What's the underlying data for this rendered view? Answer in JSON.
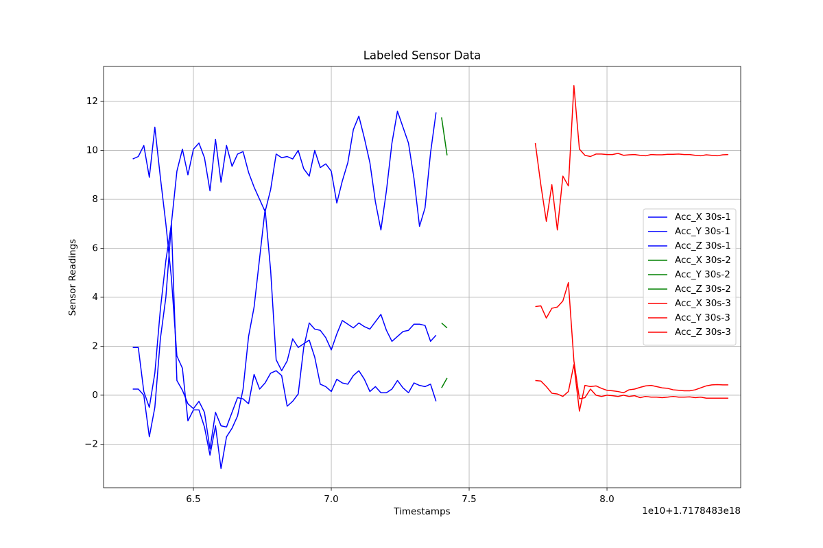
{
  "chart_data": {
    "type": "line",
    "title": "Labeled Sensor Data",
    "x_label": "Timestamps",
    "y_label": "Sensor Readings",
    "x_offset_label": "1e10+1.7178483e18",
    "xlim": [
      6.174,
      8.485
    ],
    "ylim": [
      -3.78,
      13.43
    ],
    "xticks": [
      6.5,
      {
        "value": 7,
        "label": "7.0"
      },
      7.5,
      {
        "value": 8,
        "label": "8.0"
      }
    ],
    "yticks": [
      {
        "value": -2,
        "label": "−2"
      },
      0,
      2,
      4,
      6,
      8,
      10,
      12
    ],
    "grid": true,
    "legend_position": "center right",
    "series": [
      {
        "name": "Acc_X 30s-1",
        "color": "#0000ff",
        "x": [
          6.28,
          6.3,
          6.32,
          6.34,
          6.36,
          6.38,
          6.4,
          6.42,
          6.44,
          6.46,
          6.48,
          6.5,
          6.52,
          6.54,
          6.56,
          6.58,
          6.6,
          6.62,
          6.64,
          6.66,
          6.68,
          6.7,
          6.72,
          6.74,
          6.76,
          6.78,
          6.8,
          6.82,
          6.84,
          6.86,
          6.88,
          6.9,
          6.92,
          6.94,
          6.96,
          6.98,
          7.0,
          7.02,
          7.04,
          7.06,
          7.08,
          7.1,
          7.12,
          7.14,
          7.16,
          7.18,
          7.2,
          7.22,
          7.24,
          7.26,
          7.28,
          7.3,
          7.32,
          7.34,
          7.36,
          7.38
        ],
        "values": [
          1.95,
          1.95,
          0.15,
          -0.5,
          0.9,
          3.5,
          5.5,
          7.0,
          9.15,
          10.05,
          9.0,
          10.05,
          10.3,
          9.7,
          8.35,
          10.45,
          8.7,
          10.2,
          9.35,
          9.85,
          9.95,
          9.1,
          8.5,
          8.0,
          7.5,
          8.4,
          9.85,
          9.7,
          9.75,
          9.65,
          10.0,
          9.25,
          8.95,
          10.0,
          9.3,
          9.45,
          9.15,
          7.85,
          8.75,
          9.5,
          10.85,
          11.4,
          10.5,
          9.5,
          7.9,
          6.75,
          8.35,
          10.3,
          11.6,
          10.95,
          10.3,
          8.85,
          6.9,
          7.65,
          9.9,
          11.55
        ]
      },
      {
        "name": "Acc_Y 30s-1",
        "color": "#0000ff",
        "x": [
          6.28,
          6.3,
          6.32,
          6.34,
          6.36,
          6.38,
          6.4,
          6.42,
          6.44,
          6.46,
          6.48,
          6.5,
          6.52,
          6.54,
          6.56,
          6.58,
          6.6,
          6.62,
          6.64,
          6.66,
          6.68,
          6.7,
          6.72,
          6.74,
          6.76,
          6.78,
          6.8,
          6.82,
          6.84,
          6.86,
          6.88,
          6.9,
          6.92,
          6.94,
          6.96,
          6.98,
          7.0,
          7.02,
          7.04,
          7.06,
          7.08,
          7.1,
          7.12,
          7.14,
          7.16,
          7.18,
          7.2,
          7.22,
          7.24,
          7.26,
          7.28,
          7.3,
          7.32,
          7.34,
          7.36,
          7.38
        ],
        "values": [
          0.25,
          0.25,
          0.0,
          -1.7,
          -0.5,
          2.3,
          4.0,
          7.0,
          0.6,
          0.2,
          -0.35,
          -0.55,
          -0.25,
          -0.7,
          -2.2,
          -0.7,
          -1.25,
          -1.3,
          -0.7,
          -0.1,
          -0.15,
          -0.35,
          0.85,
          0.25,
          0.5,
          0.9,
          1.0,
          0.8,
          -0.45,
          -0.25,
          0.05,
          1.95,
          2.95,
          2.7,
          2.65,
          2.35,
          1.85,
          2.5,
          3.05,
          2.9,
          2.75,
          2.95,
          2.8,
          2.7,
          3.0,
          3.3,
          2.65,
          2.2,
          2.4,
          2.6,
          2.65,
          2.9,
          2.9,
          2.85,
          2.2,
          2.45
        ]
      },
      {
        "name": "Acc_Z 30s-1",
        "color": "#0000ff",
        "x": [
          6.28,
          6.3,
          6.32,
          6.34,
          6.36,
          6.38,
          6.4,
          6.42,
          6.44,
          6.46,
          6.48,
          6.5,
          6.52,
          6.54,
          6.56,
          6.58,
          6.6,
          6.62,
          6.64,
          6.66,
          6.68,
          6.7,
          6.72,
          6.74,
          6.76,
          6.78,
          6.8,
          6.82,
          6.84,
          6.86,
          6.88,
          6.9,
          6.92,
          6.94,
          6.96,
          6.98,
          7.0,
          7.02,
          7.04,
          7.06,
          7.08,
          7.1,
          7.12,
          7.14,
          7.16,
          7.18,
          7.2,
          7.22,
          7.24,
          7.26,
          7.28,
          7.3,
          7.32,
          7.34,
          7.36,
          7.38
        ],
        "values": [
          9.65,
          9.75,
          10.2,
          8.9,
          10.95,
          8.9,
          7.0,
          4.8,
          1.6,
          1.1,
          -1.05,
          -0.6,
          -0.6,
          -1.3,
          -2.45,
          -1.25,
          -3.0,
          -1.7,
          -1.35,
          -0.85,
          0.25,
          2.4,
          3.6,
          5.6,
          7.6,
          5.1,
          1.45,
          1.0,
          1.4,
          2.3,
          1.95,
          2.1,
          2.25,
          1.55,
          0.45,
          0.35,
          0.15,
          0.65,
          0.5,
          0.45,
          0.8,
          1.0,
          0.65,
          0.15,
          0.35,
          0.1,
          0.1,
          0.25,
          0.6,
          0.3,
          0.1,
          0.5,
          0.4,
          0.35,
          0.45,
          -0.25
        ]
      },
      {
        "name": "Acc_X 30s-2",
        "color": "#008000",
        "x": [
          7.4,
          7.42
        ],
        "values": [
          2.95,
          2.75
        ]
      },
      {
        "name": "Acc_Y 30s-2",
        "color": "#008000",
        "x": [
          7.4,
          7.42
        ],
        "values": [
          0.3,
          0.7
        ]
      },
      {
        "name": "Acc_Z 30s-2",
        "color": "#008000",
        "x": [
          7.4,
          7.42
        ],
        "values": [
          11.35,
          9.8
        ]
      },
      {
        "name": "Acc_X 30s-3",
        "color": "#ff0000",
        "x": [
          7.74,
          7.76,
          7.78,
          7.8,
          7.82,
          7.84,
          7.86,
          7.88,
          7.9,
          7.92,
          7.94,
          7.96,
          7.98,
          8.0,
          8.02,
          8.04,
          8.06,
          8.08,
          8.1,
          8.12,
          8.14,
          8.16,
          8.18,
          8.2,
          8.22,
          8.24,
          8.26,
          8.28,
          8.3,
          8.32,
          8.34,
          8.36,
          8.38,
          8.4,
          8.42,
          8.44
        ],
        "values": [
          3.62,
          3.65,
          3.15,
          3.55,
          3.6,
          3.85,
          4.6,
          1.4,
          -0.15,
          -0.1,
          0.25,
          0.0,
          -0.05,
          0.0,
          -0.02,
          -0.05,
          0.0,
          -0.05,
          -0.02,
          -0.1,
          -0.05,
          -0.08,
          -0.08,
          -0.1,
          -0.08,
          -0.05,
          -0.08,
          -0.08,
          -0.07,
          -0.1,
          -0.08,
          -0.12,
          -0.12,
          -0.12,
          -0.12,
          -0.12
        ]
      },
      {
        "name": "Acc_Y 30s-3",
        "color": "#ff0000",
        "x": [
          7.74,
          7.76,
          7.78,
          7.8,
          7.82,
          7.84,
          7.86,
          7.88,
          7.9,
          7.92,
          7.94,
          7.96,
          7.98,
          8.0,
          8.02,
          8.04,
          8.06,
          8.08,
          8.1,
          8.12,
          8.14,
          8.16,
          8.18,
          8.2,
          8.22,
          8.24,
          8.26,
          8.28,
          8.3,
          8.32,
          8.34,
          8.36,
          8.38,
          8.4,
          8.42,
          8.44
        ],
        "values": [
          0.6,
          0.58,
          0.35,
          0.08,
          0.05,
          -0.05,
          0.15,
          1.25,
          -0.65,
          0.4,
          0.35,
          0.38,
          0.28,
          0.2,
          0.18,
          0.15,
          0.1,
          0.22,
          0.25,
          0.32,
          0.38,
          0.4,
          0.35,
          0.3,
          0.28,
          0.22,
          0.2,
          0.18,
          0.18,
          0.22,
          0.3,
          0.38,
          0.42,
          0.43,
          0.42,
          0.42
        ]
      },
      {
        "name": "Acc_Z 30s-3",
        "color": "#ff0000",
        "x": [
          7.74,
          7.76,
          7.78,
          7.8,
          7.82,
          7.84,
          7.86,
          7.88,
          7.9,
          7.92,
          7.94,
          7.96,
          7.98,
          8.0,
          8.02,
          8.04,
          8.06,
          8.08,
          8.1,
          8.12,
          8.14,
          8.16,
          8.18,
          8.2,
          8.22,
          8.24,
          8.26,
          8.28,
          8.3,
          8.32,
          8.34,
          8.36,
          8.38,
          8.4,
          8.42,
          8.44
        ],
        "values": [
          10.3,
          8.6,
          7.1,
          8.6,
          6.75,
          8.95,
          8.55,
          12.65,
          10.05,
          9.8,
          9.75,
          9.85,
          9.85,
          9.83,
          9.83,
          9.88,
          9.8,
          9.82,
          9.83,
          9.8,
          9.78,
          9.83,
          9.82,
          9.82,
          9.84,
          9.84,
          9.85,
          9.83,
          9.83,
          9.8,
          9.78,
          9.82,
          9.8,
          9.78,
          9.82,
          9.83
        ]
      }
    ]
  }
}
